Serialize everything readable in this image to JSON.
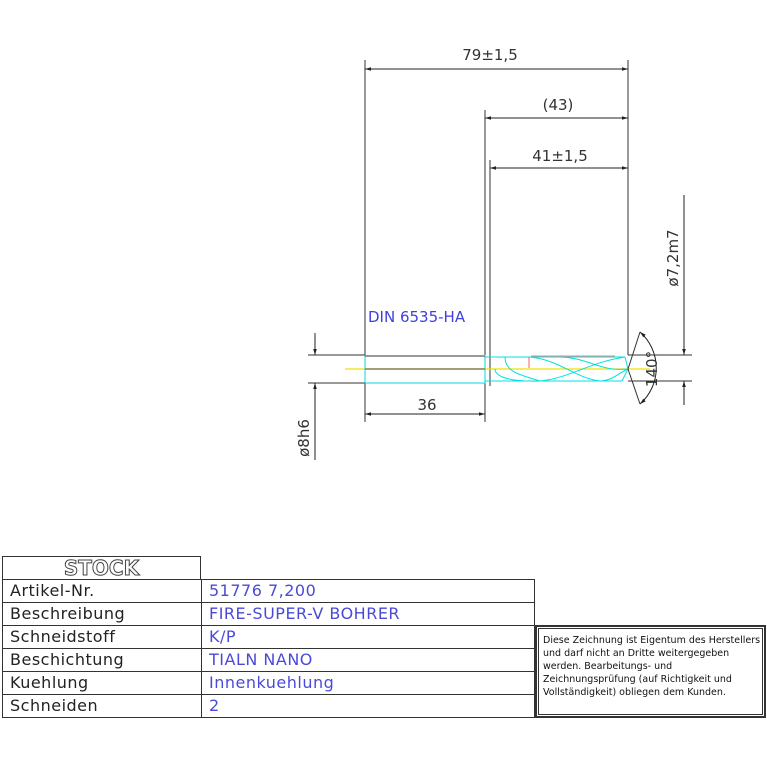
{
  "drawing": {
    "dimensions": {
      "overall_length": "79±1,5",
      "flute_length_ref": "(43)",
      "flute_length": "41±1,5",
      "drill_diameter": "ø7,2m7",
      "shank_diameter": "ø8h6",
      "shank_length": "36",
      "point_angle": "140°"
    },
    "standard_label": "DIN 6535-HA",
    "colors": {
      "outline": "#333333",
      "flute": "#00e0e0",
      "centerline": "#f0e000",
      "accent_red": "#ff6060",
      "text_blue": "#4040e0"
    }
  },
  "title_block": {
    "logo": "STOCK",
    "rows": [
      {
        "label": "Artikel-Nr.",
        "value": "51776  7,200"
      },
      {
        "label": "Beschreibung",
        "value": "FIRE-SUPER-V BOHRER"
      },
      {
        "label": "Schneidstoff",
        "value": "K/P"
      },
      {
        "label": "Beschichtung",
        "value": "TIALN NANO"
      },
      {
        "label": "Kuehlung",
        "value": "Innenkuehlung"
      },
      {
        "label": "Schneiden",
        "value": "2"
      }
    ],
    "note": "Diese Zeichnung ist Eigentum des Herstellers und darf nicht an Dritte weitergegeben werden. Bearbeitungs- und Zeichnungsprüfung (auf Richtigkeit und Vollständigkeit) obliegen dem Kunden."
  }
}
